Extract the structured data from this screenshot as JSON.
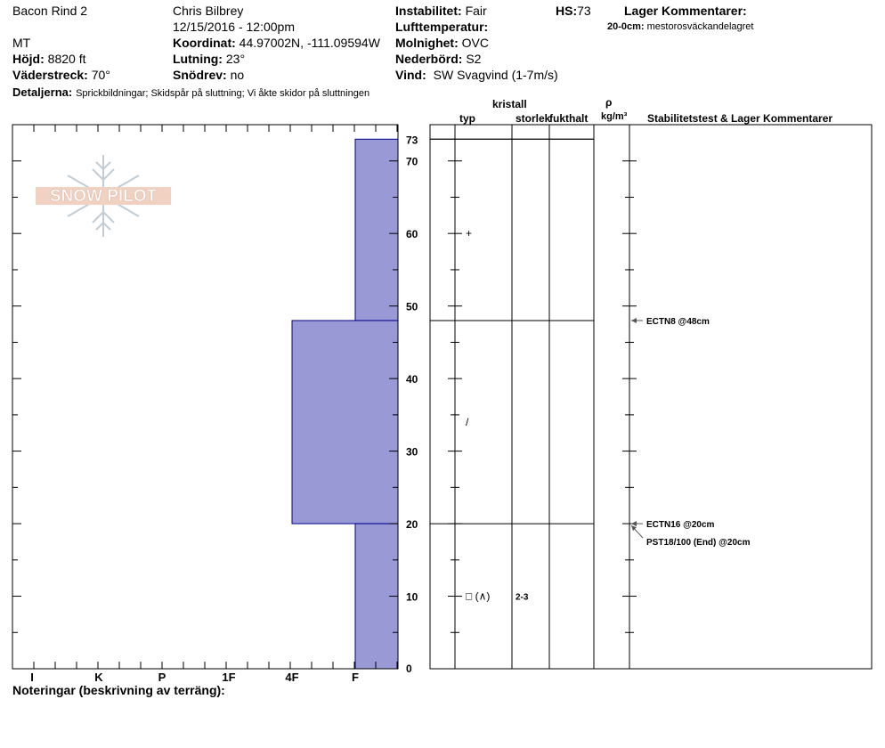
{
  "header": {
    "site": "Bacon Rind 2",
    "state": "MT",
    "elevation_label": "Höjd:",
    "elevation_value": "8820 ft",
    "aspect_label": "Väderstreck:",
    "aspect_value": "70°",
    "details_label": "Detaljerna:",
    "details_value": "Sprickbildningar;  Skidspår på sluttning;  Vi åkte skidor på sluttningen",
    "observer": "Chris Bilbrey",
    "datetime": "12/15/2016 - 12:00pm",
    "coord_label": "Koordinat:",
    "coord_value": "44.97002N, -111.09594W",
    "slope_label": "Lutning:",
    "slope_value": "23°",
    "drift_label": "Snödrev:",
    "drift_value": "no",
    "stability_label": "Instabilitet:",
    "stability_value": "Fair",
    "airtemp_label": "Lufttemperatur:",
    "airtemp_value": "",
    "sky_label": "Molnighet:",
    "sky_value": "OVC",
    "precip_label": "Nederbörd:",
    "precip_value": "S2",
    "wind_label": "Vind:",
    "wind_value": "SW  Svagvind (1-7m/s)",
    "hs_label": "HS:",
    "hs_value": "73",
    "layer_comments_label": "Lager Kommentarer:",
    "layer_comment_depth": "20-0cm:",
    "layer_comment_text": "mestorosväckandelagret"
  },
  "logo_text": "SNOW PILOT",
  "columns": {
    "type": "typ",
    "crystal": "kristall",
    "size": "storlek",
    "moisture": "fukthalt",
    "rho": "ρ",
    "density_unit": "kg/m³",
    "stability": "Stabilitetstest & Lager Kommentarer"
  },
  "notes_label": "Noteringar (beskrivning av terräng):",
  "colors": {
    "hardness_fill": "#9999d6",
    "hardness_stroke": "#00008b"
  },
  "chart_data": {
    "type": "bar",
    "title": "",
    "xlabel": "",
    "ylabel": "",
    "x_categories": [
      "I",
      "K",
      "P",
      "1F",
      "4F",
      "F"
    ],
    "ylim": [
      0,
      73
    ],
    "ytick_labels": [
      "0",
      "10",
      "20",
      "30",
      "40",
      "50",
      "60",
      "70",
      "73"
    ],
    "layers": [
      {
        "top": 73,
        "bottom": 48,
        "hardness": "F"
      },
      {
        "top": 48,
        "bottom": 20,
        "hardness": "4F"
      },
      {
        "top": 20,
        "bottom": 0,
        "hardness": "F"
      }
    ],
    "grain_rows": [
      {
        "depth": 60,
        "type": "+",
        "size": ""
      },
      {
        "depth": 34,
        "type": "/",
        "size": ""
      },
      {
        "depth": 10,
        "type": "□ (∧)",
        "size": "2-3"
      }
    ],
    "stability_tests": [
      {
        "depth": 48,
        "label": "ECTN8 @48cm"
      },
      {
        "depth": 20,
        "label": "ECTN16 @20cm"
      },
      {
        "depth": 20,
        "label": "PST18/100 (End) @20cm"
      }
    ]
  }
}
